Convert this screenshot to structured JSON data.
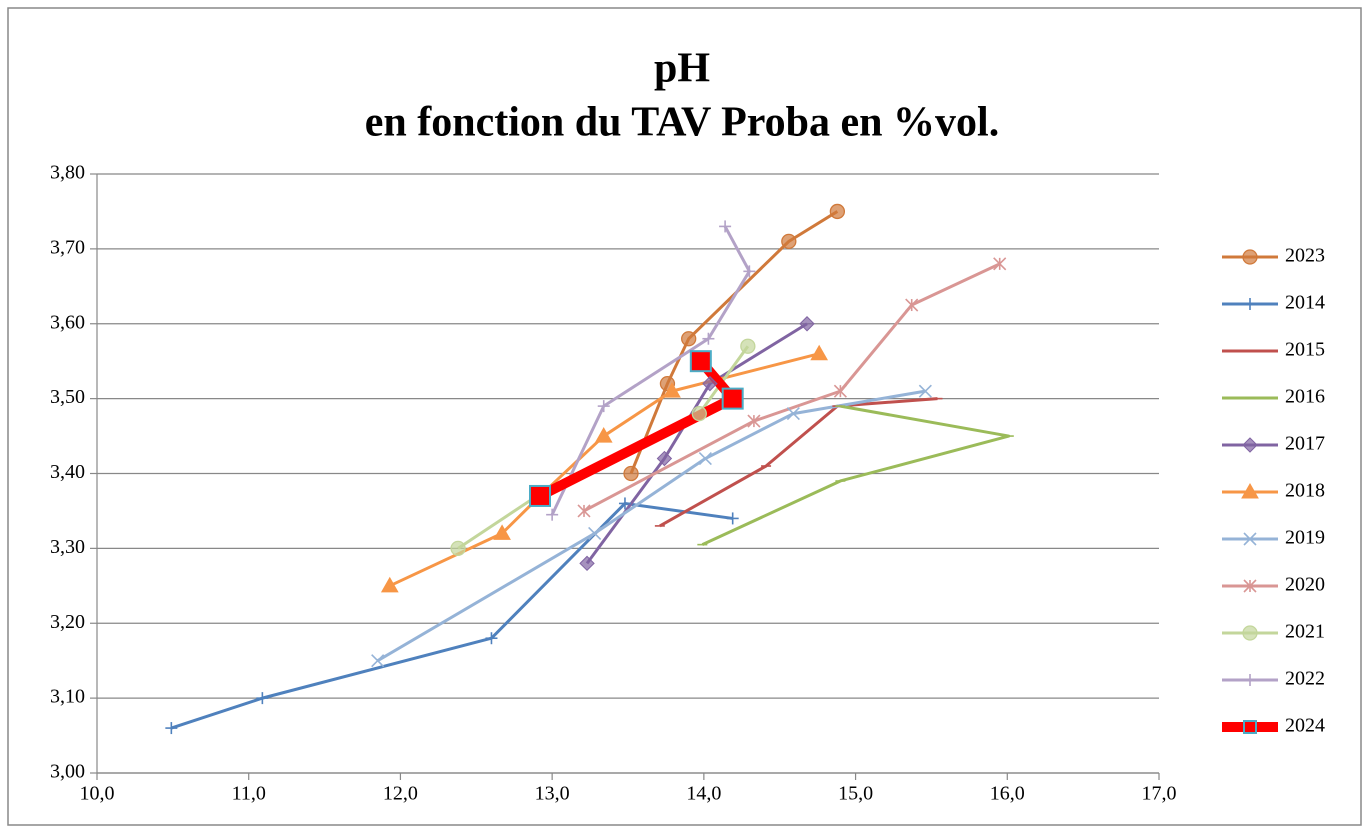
{
  "chart_data": {
    "type": "line",
    "title": [
      "pH",
      "en fonction du TAV Proba en %vol."
    ],
    "xlim": [
      10,
      17
    ],
    "xticks": [
      {
        "value": 10,
        "label": "10,0"
      },
      {
        "value": 11,
        "label": "11,0"
      },
      {
        "value": 12,
        "label": "12,0"
      },
      {
        "value": 13,
        "label": "13,0"
      },
      {
        "value": 14,
        "label": "14,0"
      },
      {
        "value": 15,
        "label": "15,0"
      },
      {
        "value": 16,
        "label": "16,0"
      },
      {
        "value": 17,
        "label": "17,0"
      }
    ],
    "ylim": [
      3.0,
      3.8
    ],
    "yticks": [
      {
        "value": 3.0,
        "label": "3,00"
      },
      {
        "value": 3.1,
        "label": "3,10"
      },
      {
        "value": 3.2,
        "label": "3,20"
      },
      {
        "value": 3.3,
        "label": "3,30"
      },
      {
        "value": 3.4,
        "label": "3,40"
      },
      {
        "value": 3.5,
        "label": "3,50"
      },
      {
        "value": 3.6,
        "label": "3,60"
      },
      {
        "value": 3.7,
        "label": "3,70"
      },
      {
        "value": 3.8,
        "label": "3,80"
      }
    ],
    "grid": true,
    "legend": "right",
    "series": [
      {
        "name": "2023",
        "color": "#d0793a",
        "marker": "circle",
        "x": [
          13.52,
          13.76,
          13.9,
          14.56,
          14.88
        ],
        "values": [
          3.4,
          3.52,
          3.58,
          3.71,
          3.75
        ]
      },
      {
        "name": "2014",
        "color": "#4f81bd",
        "marker": "plus",
        "x": [
          10.49,
          11.09,
          12.6,
          13.48,
          14.19
        ],
        "values": [
          3.06,
          3.1,
          3.18,
          3.36,
          3.34
        ]
      },
      {
        "name": "2015",
        "color": "#c0504d",
        "marker": "dash",
        "x": [
          13.71,
          14.41,
          14.88,
          15.54
        ],
        "values": [
          3.33,
          3.41,
          3.49,
          3.5
        ]
      },
      {
        "name": "2016",
        "color": "#9bbb59",
        "marker": "dash",
        "x": [
          13.99,
          14.9,
          16.01,
          14.9
        ],
        "values": [
          3.305,
          3.39,
          3.45,
          3.49
        ]
      },
      {
        "name": "2017",
        "color": "#8064a2",
        "marker": "diamond",
        "x": [
          13.23,
          13.74,
          14.04,
          14.68
        ],
        "values": [
          3.28,
          3.42,
          3.52,
          3.6
        ]
      },
      {
        "name": "2018",
        "color": "#f79646",
        "marker": "triangle",
        "x": [
          11.93,
          12.67,
          12.92,
          13.34,
          13.79,
          14.76
        ],
        "values": [
          3.25,
          3.32,
          3.37,
          3.45,
          3.51,
          3.56
        ]
      },
      {
        "name": "2019",
        "color": "#95b3d7",
        "marker": "x",
        "x": [
          11.85,
          13.28,
          14.01,
          14.59,
          15.46
        ],
        "values": [
          3.15,
          3.32,
          3.42,
          3.48,
          3.51
        ]
      },
      {
        "name": "2020",
        "color": "#d99694",
        "marker": "asterisk",
        "x": [
          13.21,
          14.33,
          14.9,
          15.37,
          15.95
        ],
        "values": [
          3.35,
          3.47,
          3.51,
          3.625,
          3.68
        ]
      },
      {
        "name": "2021",
        "color": "#c3d69b",
        "marker": "circle",
        "x": [
          12.38,
          12.9,
          13.97,
          14.29
        ],
        "values": [
          3.3,
          3.37,
          3.48,
          3.57
        ]
      },
      {
        "name": "2022",
        "color": "#b3a2c7",
        "marker": "plus",
        "x": [
          13.0,
          13.34,
          14.03,
          14.3,
          14.14
        ],
        "values": [
          3.345,
          3.49,
          3.58,
          3.67,
          3.73
        ]
      },
      {
        "name": "2024",
        "color": "#ff0000",
        "marker": "square",
        "highlight": true,
        "x": [
          12.92,
          14.19,
          13.98
        ],
        "values": [
          3.37,
          3.5,
          3.55
        ]
      }
    ]
  }
}
